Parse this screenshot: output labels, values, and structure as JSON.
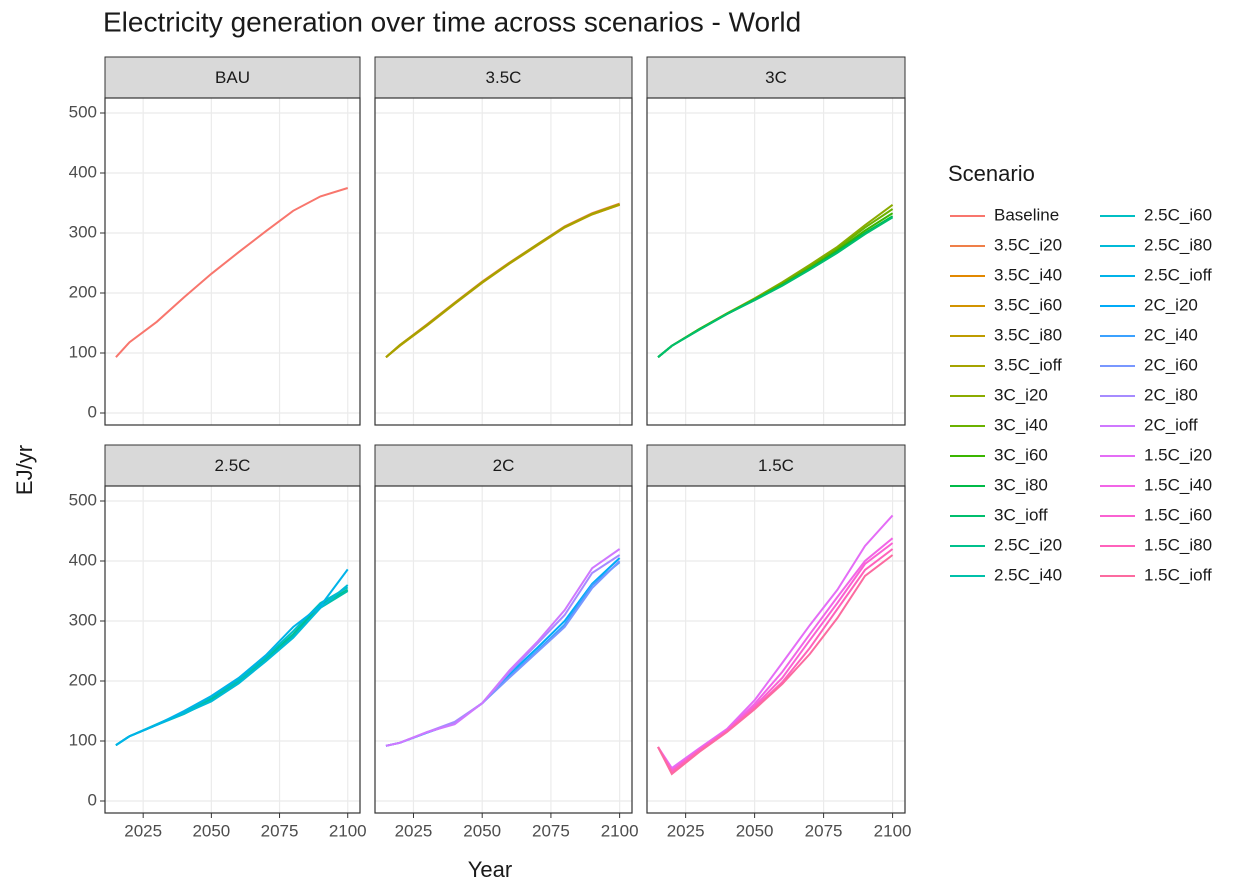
{
  "title": "Electricity generation over time across scenarios - World",
  "x_label": "Year",
  "y_label": "EJ/yr",
  "legend_title": "Scenario",
  "chart_data": [
    {
      "type": "line",
      "title": "BAU",
      "x": [
        2015,
        2020,
        2030,
        2040,
        2050,
        2060,
        2070,
        2080,
        2090,
        2100
      ],
      "xlim": [
        2011,
        2104.5
      ],
      "ylim": [
        -20,
        525
      ],
      "xticks": [
        2025,
        2050,
        2075,
        2100
      ],
      "yticks": [
        0,
        100,
        200,
        300,
        400,
        500
      ],
      "grid": true,
      "series": [
        {
          "name": "Baseline",
          "color": "#F8766D",
          "values": [
            93,
            118,
            152,
            193,
            232,
            268,
            303,
            337,
            361,
            375
          ]
        }
      ]
    },
    {
      "type": "line",
      "title": "3.5C",
      "x": [
        2015,
        2020,
        2030,
        2040,
        2050,
        2060,
        2070,
        2080,
        2090,
        2100
      ],
      "xlim": [
        2011,
        2104.5
      ],
      "ylim": [
        -20,
        525
      ],
      "xticks": [
        2025,
        2050,
        2075,
        2100
      ],
      "yticks": [
        0,
        100,
        200,
        300,
        400,
        500
      ],
      "grid": true,
      "series": [
        {
          "name": "3.5C_i20",
          "color": "#EF7F49",
          "values": [
            93,
            113,
            148,
            184,
            219,
            251,
            281,
            311,
            333,
            349
          ]
        },
        {
          "name": "3.5C_i40",
          "color": "#E28800",
          "values": [
            93,
            113,
            147,
            183,
            218,
            250,
            280,
            310,
            332,
            348
          ]
        },
        {
          "name": "3.5C_i60",
          "color": "#D29300",
          "values": [
            93,
            112,
            147,
            183,
            218,
            250,
            280,
            310,
            331,
            347
          ]
        },
        {
          "name": "3.5C_i80",
          "color": "#BE9C00",
          "values": [
            93,
            112,
            146,
            182,
            217,
            249,
            279,
            309,
            331,
            347
          ]
        },
        {
          "name": "3.5C_ioff",
          "color": "#A5A300",
          "values": [
            93,
            113,
            147,
            183,
            218,
            250,
            281,
            310,
            332,
            348
          ]
        }
      ]
    },
    {
      "type": "line",
      "title": "3C",
      "x": [
        2015,
        2020,
        2030,
        2040,
        2050,
        2060,
        2070,
        2080,
        2090,
        2100
      ],
      "xlim": [
        2011,
        2104.5
      ],
      "ylim": [
        -20,
        525
      ],
      "xticks": [
        2025,
        2050,
        2075,
        2100
      ],
      "yticks": [
        0,
        100,
        200,
        300,
        400,
        500
      ],
      "grid": true,
      "series": [
        {
          "name": "3C_i20",
          "color": "#8BAB00",
          "values": [
            93,
            112,
            140,
            166,
            191,
            218,
            247,
            277,
            313,
            347
          ]
        },
        {
          "name": "3C_i40",
          "color": "#6BB100",
          "values": [
            93,
            112,
            140,
            166,
            190,
            216,
            244,
            274,
            309,
            340
          ]
        },
        {
          "name": "3C_i60",
          "color": "#3AB500",
          "values": [
            93,
            112,
            140,
            165,
            189,
            214,
            241,
            271,
            304,
            333
          ]
        },
        {
          "name": "3C_i80",
          "color": "#00BA48",
          "values": [
            93,
            112,
            139,
            165,
            189,
            213,
            240,
            269,
            300,
            328
          ]
        },
        {
          "name": "3C_ioff",
          "color": "#00BE6E",
          "values": [
            93,
            112,
            139,
            165,
            188,
            212,
            239,
            267,
            298,
            326
          ]
        }
      ]
    },
    {
      "type": "line",
      "title": "2.5C",
      "x": [
        2015,
        2020,
        2030,
        2040,
        2050,
        2060,
        2070,
        2080,
        2090,
        2100
      ],
      "xlim": [
        2011,
        2104.5
      ],
      "ylim": [
        -20,
        525
      ],
      "xticks": [
        2025,
        2050,
        2075,
        2100
      ],
      "yticks": [
        0,
        100,
        200,
        300,
        400,
        500
      ],
      "grid": true,
      "series": [
        {
          "name": "2.5C_i20",
          "color": "#00C08D",
          "values": [
            93,
            108,
            127,
            147,
            170,
            200,
            237,
            278,
            327,
            352
          ]
        },
        {
          "name": "2.5C_i40",
          "color": "#00C0AA",
          "values": [
            93,
            108,
            127,
            145,
            168,
            198,
            235,
            275,
            322,
            350
          ]
        },
        {
          "name": "2.5C_i60",
          "color": "#00BFC4",
          "values": [
            93,
            108,
            128,
            148,
            173,
            202,
            240,
            283,
            330,
            356
          ]
        },
        {
          "name": "2.5C_i80",
          "color": "#00BAD8",
          "values": [
            93,
            108,
            127,
            146,
            166,
            196,
            233,
            272,
            322,
            360
          ]
        },
        {
          "name": "2.5C_ioff",
          "color": "#00B3E9",
          "values": [
            93,
            108,
            127,
            150,
            175,
            205,
            243,
            290,
            325,
            386
          ]
        }
      ]
    },
    {
      "type": "line",
      "title": "2C",
      "x": [
        2015,
        2020,
        2030,
        2040,
        2050,
        2060,
        2070,
        2080,
        2090,
        2100
      ],
      "xlim": [
        2011,
        2104.5
      ],
      "ylim": [
        -20,
        525
      ],
      "xticks": [
        2025,
        2050,
        2075,
        2100
      ],
      "yticks": [
        0,
        100,
        200,
        300,
        400,
        500
      ],
      "grid": true,
      "series": [
        {
          "name": "2C_i20",
          "color": "#00ABF8",
          "values": [
            92,
            97,
            114,
            130,
            163,
            212,
            255,
            300,
            362,
            405
          ]
        },
        {
          "name": "2C_i40",
          "color": "#3BA1FF",
          "values": [
            92,
            97,
            114,
            130,
            163,
            208,
            250,
            294,
            360,
            398
          ]
        },
        {
          "name": "2C_i60",
          "color": "#7997FF",
          "values": [
            92,
            97,
            114,
            130,
            163,
            206,
            248,
            290,
            355,
            400
          ]
        },
        {
          "name": "2C_i80",
          "color": "#A68BFF",
          "values": [
            92,
            97,
            115,
            132,
            163,
            215,
            262,
            310,
            380,
            410
          ]
        },
        {
          "name": "2C_ioff",
          "color": "#CF78FF",
          "values": [
            92,
            97,
            115,
            128,
            163,
            218,
            265,
            318,
            388,
            420
          ]
        }
      ]
    },
    {
      "type": "line",
      "title": "1.5C",
      "x": [
        2015,
        2020,
        2030,
        2040,
        2050,
        2060,
        2070,
        2080,
        2090,
        2100
      ],
      "xlim": [
        2011,
        2104.5
      ],
      "ylim": [
        -20,
        525
      ],
      "xticks": [
        2025,
        2050,
        2075,
        2100
      ],
      "yticks": [
        0,
        100,
        200,
        300,
        400,
        500
      ],
      "grid": true,
      "series": [
        {
          "name": "1.5C_i20",
          "color": "#E46DF6",
          "values": [
            90,
            55,
            88,
            120,
            168,
            230,
            293,
            352,
            425,
            476
          ]
        },
        {
          "name": "1.5C_i40",
          "color": "#F265E7",
          "values": [
            90,
            52,
            86,
            118,
            162,
            215,
            278,
            340,
            400,
            438
          ]
        },
        {
          "name": "1.5C_i60",
          "color": "#FA62D2",
          "values": [
            90,
            50,
            85,
            117,
            158,
            205,
            268,
            330,
            395,
            430
          ]
        },
        {
          "name": "1.5C_i80",
          "color": "#FF62BC",
          "values": [
            90,
            48,
            84,
            116,
            155,
            198,
            255,
            320,
            385,
            420
          ]
        },
        {
          "name": "1.5C_ioff",
          "color": "#FC6BA0",
          "values": [
            90,
            45,
            82,
            115,
            153,
            195,
            245,
            305,
            375,
            410
          ]
        }
      ]
    }
  ]
}
